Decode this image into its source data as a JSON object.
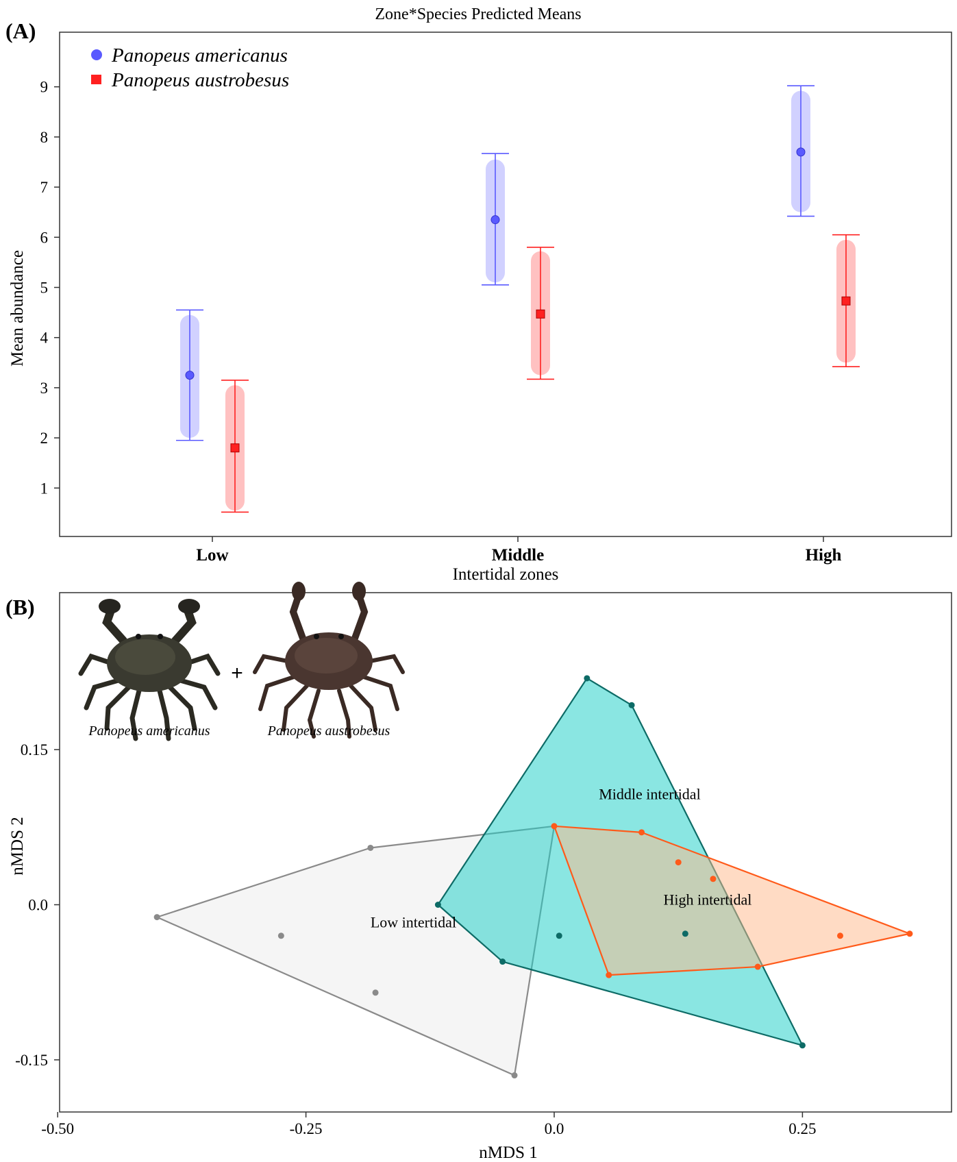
{
  "chart_data": [
    {
      "panel": "(A)",
      "type": "scatter",
      "title": "Zone*Species Predicted Means",
      "xlabel": "Intertidal zones",
      "ylabel": "Mean abundance",
      "categories": [
        "Low",
        "Middle",
        "High"
      ],
      "y_ticks": [
        "1",
        "2",
        "3",
        "4",
        "5",
        "6",
        "7",
        "8",
        "9"
      ],
      "ylim": [
        0,
        10
      ],
      "legend_position": "top-left",
      "series": [
        {
          "name": "Panopeus americanus",
          "color": "#5a5aff",
          "marker": "circle",
          "values": [
            3.25,
            6.35,
            7.7
          ],
          "ci_lower": [
            1.95,
            5.05,
            6.42
          ],
          "ci_upper": [
            4.55,
            7.67,
            9.02
          ],
          "se_lower": [
            2.0,
            5.1,
            6.5
          ],
          "se_upper": [
            4.45,
            7.55,
            8.92
          ]
        },
        {
          "name": "Panopeus austrobesus",
          "color": "#ff2020",
          "marker": "square",
          "values": [
            1.8,
            4.47,
            4.73
          ],
          "ci_lower": [
            0.52,
            3.17,
            3.42
          ],
          "ci_upper": [
            3.15,
            5.8,
            6.05
          ],
          "se_lower": [
            0.55,
            3.25,
            3.5
          ],
          "se_upper": [
            3.05,
            5.72,
            5.95
          ]
        }
      ]
    },
    {
      "panel": "(B)",
      "type": "scatter",
      "xlabel": "nMDS 1",
      "ylabel": "nMDS 2",
      "x_ticks": [
        "-0.50",
        "-0.25",
        "0.0",
        "0.25"
      ],
      "y_ticks": [
        "-0.15",
        "0.0",
        "0.15"
      ],
      "xlim": [
        -0.5,
        0.4
      ],
      "ylim": [
        -0.2,
        0.3
      ],
      "hulls": [
        {
          "name": "Low intertidal",
          "stroke": "#8a8a8a",
          "fill": "#e8e8e8",
          "hull": [
            [
              -0.4,
              -0.012
            ],
            [
              -0.185,
              0.055
            ],
            [
              0.0,
              0.076
            ],
            [
              -0.04,
              -0.165
            ]
          ],
          "points": [
            [
              -0.4,
              -0.012
            ],
            [
              -0.185,
              0.055
            ],
            [
              -0.04,
              -0.165
            ],
            [
              -0.275,
              -0.03
            ],
            [
              -0.18,
              -0.085
            ]
          ],
          "label_at": [
            -0.185,
            -0.022
          ]
        },
        {
          "name": "Middle intertidal",
          "stroke": "#0d6b66",
          "fill": "#1ecfc8",
          "hull": [
            [
              0.033,
              0.219
            ],
            [
              0.078,
              0.193
            ],
            [
              0.25,
              -0.136
            ],
            [
              -0.052,
              -0.055
            ],
            [
              -0.117,
              0.0
            ]
          ],
          "points": [
            [
              0.033,
              0.219
            ],
            [
              0.078,
              0.193
            ],
            [
              0.25,
              -0.136
            ],
            [
              -0.052,
              -0.055
            ],
            [
              -0.117,
              0.0
            ],
            [
              0.005,
              -0.03
            ],
            [
              0.132,
              -0.028
            ]
          ],
          "label_at": [
            0.045,
            0.102
          ]
        },
        {
          "name": "High intertidal",
          "stroke": "#ff5a1a",
          "fill": "#ffb88a",
          "hull": [
            [
              0.0,
              0.076
            ],
            [
              0.088,
              0.07
            ],
            [
              0.358,
              -0.028
            ],
            [
              0.205,
              -0.06
            ],
            [
              0.055,
              -0.068
            ]
          ],
          "points": [
            [
              0.0,
              0.076
            ],
            [
              0.088,
              0.07
            ],
            [
              0.358,
              -0.028
            ],
            [
              0.205,
              -0.06
            ],
            [
              0.055,
              -0.068
            ],
            [
              0.125,
              0.041
            ],
            [
              0.16,
              0.025
            ],
            [
              0.288,
              -0.03
            ]
          ],
          "label_at": [
            0.11,
            0.0
          ]
        }
      ],
      "inset": {
        "species": [
          "Panopeus americanus",
          "Panopeus austrobesus"
        ],
        "joiner": "+"
      }
    }
  ]
}
